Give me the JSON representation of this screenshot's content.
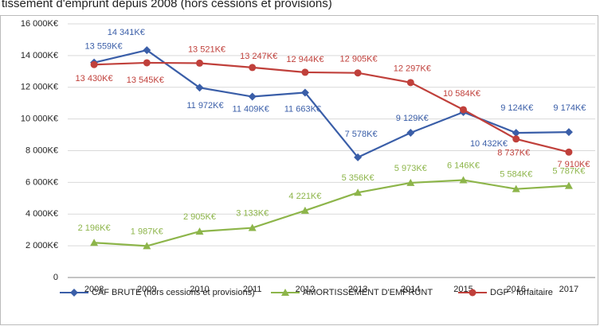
{
  "chart_data": {
    "type": "line",
    "title": "tissement d'emprunt depuis 2008 (hors cessions et provisions)",
    "categories": [
      "2008",
      "2009",
      "2010",
      "2011",
      "2012",
      "2013",
      "2014",
      "2015",
      "2016",
      "2017"
    ],
    "ylim": [
      0,
      16000
    ],
    "yticks": [
      0,
      {
        "value": 2000,
        "label": "2 000K€"
      },
      {
        "value": 4000,
        "label": "4 000K€"
      },
      {
        "value": 6000,
        "label": "6 000K€"
      },
      {
        "value": 8000,
        "label": "8 000K€"
      },
      {
        "value": 10000,
        "label": "10 000K€"
      },
      {
        "value": 12000,
        "label": "12 000K€"
      },
      {
        "value": 14000,
        "label": "14 000K€"
      },
      {
        "value": 16000,
        "label": "16 000K€"
      }
    ],
    "grid": true,
    "legend": "bottom",
    "series": [
      {
        "name": "CAF BRUTE (hors cessions et provisions)",
        "color": "#3a5ea8",
        "marker": "diamond",
        "values": [
          13559,
          14341,
          11972,
          11409,
          11663,
          7578,
          9129,
          10432,
          9124,
          9174
        ],
        "value_labels": [
          "13 559K€",
          "14 341K€",
          "11 972K€",
          "11 409K€",
          "11 663K€",
          "7 578K€",
          "9 129K€",
          "10 432K€",
          "9 124K€",
          "9 174K€"
        ]
      },
      {
        "name": "AMORTISSEMENT D'EMPRUNT",
        "color": "#8db54a",
        "marker": "triangle",
        "values": [
          2196,
          1987,
          2905,
          3133,
          4221,
          5356,
          5973,
          6146,
          5584,
          5787
        ],
        "value_labels": [
          "2 196K€",
          "1 987K€",
          "2 905K€",
          "3 133K€",
          "4 221K€",
          "5 356K€",
          "5 973K€",
          "6 146K€",
          "5 584K€",
          "5 787K€"
        ]
      },
      {
        "name": "DGF - forfaitaire",
        "color": "#c0403b",
        "marker": "circle",
        "values": [
          13430,
          13545,
          13521,
          13247,
          12944,
          12905,
          12297,
          10584,
          8737,
          7910
        ],
        "value_labels": [
          "13 430K€",
          "13 545K€",
          "13 521K€",
          "13 247K€",
          "12 944K€",
          "12 905K€",
          "12 297K€",
          "10 584K€",
          "8 737K€",
          "7 910K€"
        ]
      }
    ]
  }
}
